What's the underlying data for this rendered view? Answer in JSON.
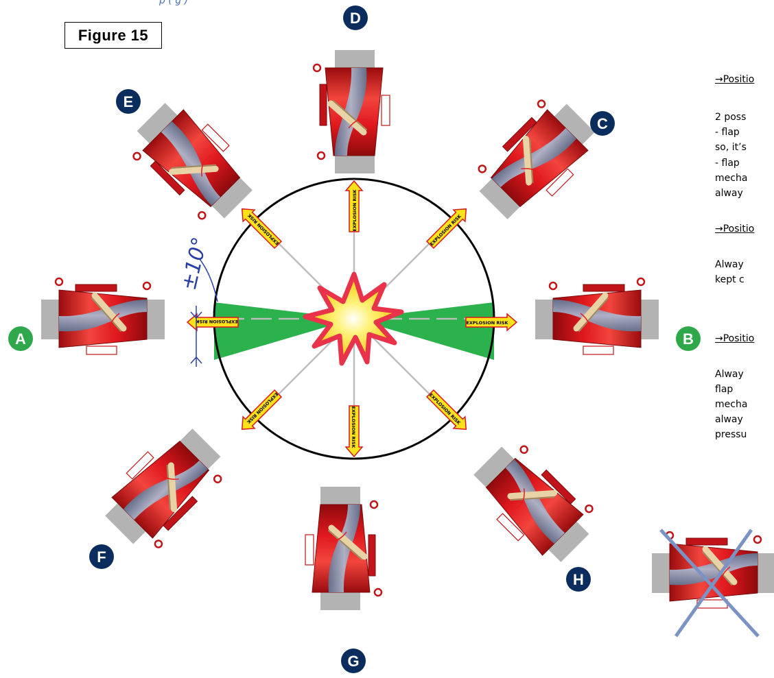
{
  "figure_title": "Figure 15",
  "top_fragment": "p    ( g              )",
  "angle_label": "±10°",
  "risk_label": "EXPLOSION RISK",
  "labels": {
    "A": "A",
    "B": "B",
    "C": "C",
    "D": "D",
    "E": "E",
    "F": "F",
    "G": "G",
    "H": "H"
  },
  "side_text": [
    {
      "id": "p1",
      "text": "→Positio",
      "underline": true
    },
    {
      "id": "l1",
      "text": "2 poss",
      "underline": false
    },
    {
      "id": "l2",
      "text": "- flap",
      "underline": false
    },
    {
      "id": "l3",
      "text": "so, it’s",
      "underline": false
    },
    {
      "id": "l4",
      "text": "- flap",
      "underline": false
    },
    {
      "id": "l5",
      "text": "mecha",
      "underline": false
    },
    {
      "id": "l6",
      "text": "alway",
      "underline": false
    },
    {
      "id": "p2",
      "text": "→Positio",
      "underline": true
    },
    {
      "id": "l7",
      "text": "Alway",
      "underline": false
    },
    {
      "id": "l8",
      "text": "kept c",
      "underline": false
    },
    {
      "id": "p3",
      "text": "→Positio",
      "underline": true
    },
    {
      "id": "l9",
      "text": "Alway",
      "underline": false
    },
    {
      "id": "l10",
      "text": "flap",
      "underline": false
    },
    {
      "id": "l11",
      "text": "mecha",
      "underline": false
    },
    {
      "id": "l12",
      "text": "alway",
      "underline": false
    },
    {
      "id": "l13",
      "text": "pressu",
      "underline": false
    }
  ],
  "colors": {
    "valve_red": "#d8161b",
    "valve_dark": "#8e0a0c",
    "pipe_blue": "#7f97b5",
    "flange_grey": "#b3b3b3",
    "label_navy": "#0b2d5e",
    "label_green": "#2ea84a",
    "zone_green": "#2bb24c",
    "arrow_yellow": "#ffe21a",
    "angle_blue": "#2a3fa6",
    "cross_blue": "#7a93c4"
  }
}
